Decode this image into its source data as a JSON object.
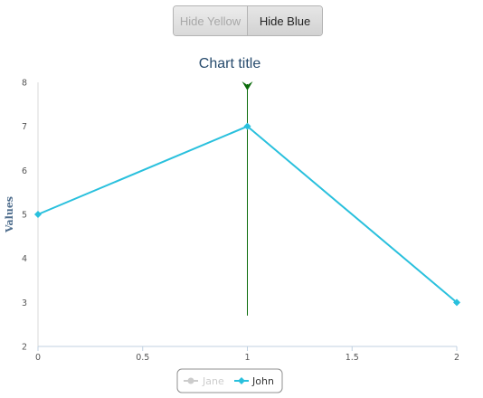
{
  "controls": {
    "hide_yellow_label": "Hide Yellow",
    "hide_blue_label": "Hide Blue"
  },
  "chart_data": {
    "type": "line",
    "title": "Chart title",
    "xlabel": "",
    "ylabel": "Values",
    "x_ticks": [
      0,
      0.5,
      1,
      1.5,
      2
    ],
    "x_tick_labels": [
      "0",
      "0.5",
      "1",
      "1.5",
      "2"
    ],
    "y_ticks": [
      2,
      3,
      4,
      5,
      6,
      7,
      8
    ],
    "y_tick_labels": [
      "2",
      "3",
      "4",
      "5",
      "6",
      "7",
      "8"
    ],
    "xlim": [
      0,
      2
    ],
    "ylim": [
      2,
      8
    ],
    "grid": false,
    "legend_position": "bottom-center",
    "series": [
      {
        "name": "Jane",
        "visible": false,
        "color": "#cccccc",
        "x": [],
        "values": []
      },
      {
        "name": "John",
        "visible": true,
        "color": "#29c0dd",
        "x": [
          0,
          1,
          2
        ],
        "values": [
          5,
          7,
          3
        ]
      }
    ],
    "marker_line": {
      "x": 1,
      "y_top": 8,
      "y_bottom": 2.7,
      "color": "#0a6b0a"
    }
  }
}
